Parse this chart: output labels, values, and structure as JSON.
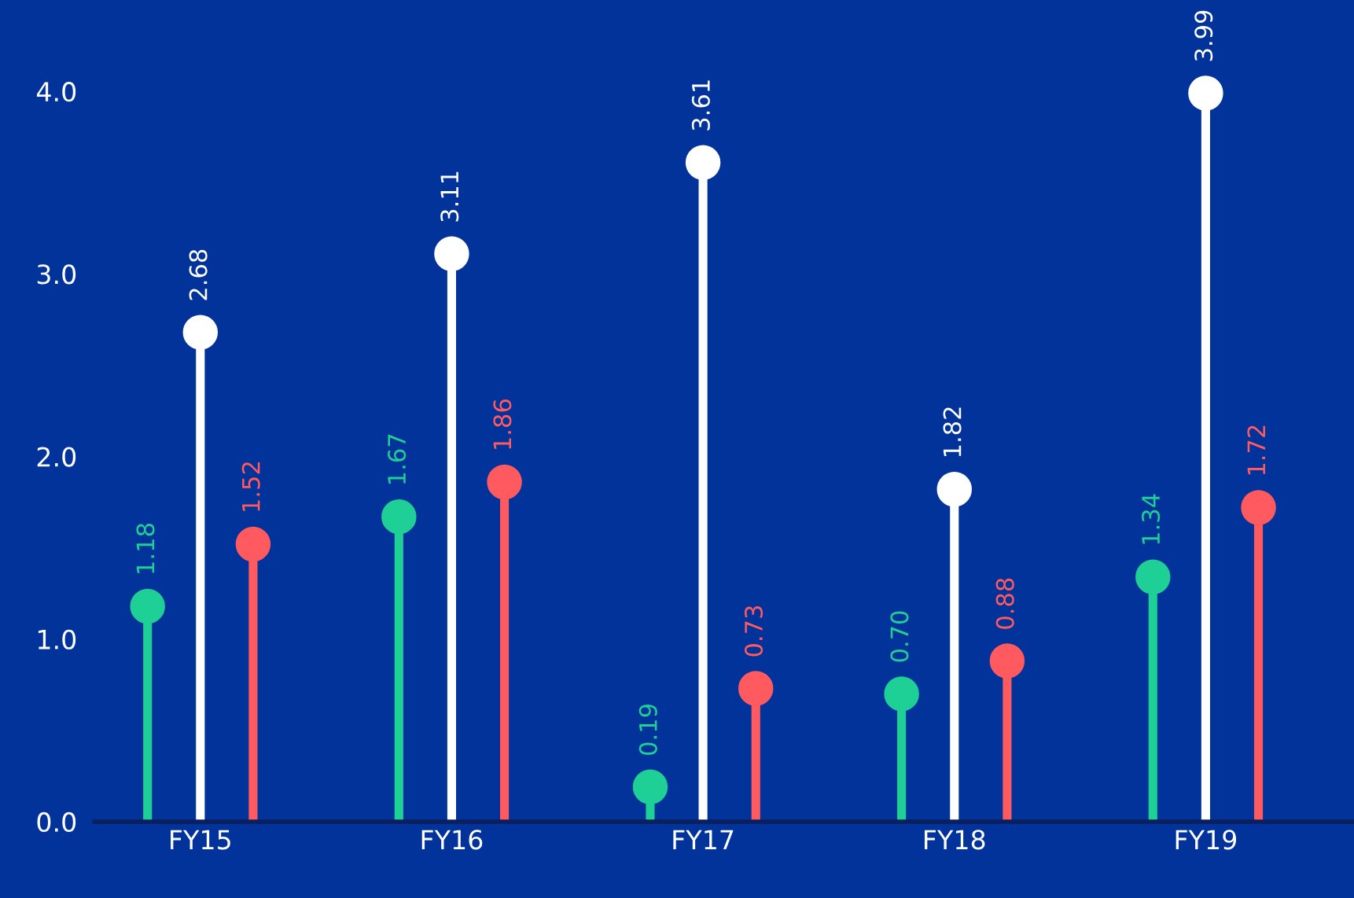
{
  "chart_data": {
    "type": "lollipop",
    "categories": [
      "FY15",
      "FY16",
      "FY17",
      "FY18",
      "FY19"
    ],
    "series": [
      {
        "color": "#1ecf96",
        "values": [
          1.18,
          1.67,
          0.19,
          0.7,
          1.34
        ],
        "value_labels": [
          "1.18",
          "1.67",
          "0.19",
          "0.70",
          "1.34"
        ]
      },
      {
        "color": "#ffffff",
        "values": [
          2.68,
          3.11,
          3.61,
          1.82,
          3.99
        ],
        "value_labels": [
          "2.68",
          "3.11",
          "3.61",
          "1.82",
          "3.99"
        ]
      },
      {
        "color": "#ff5a5f",
        "values": [
          1.52,
          1.86,
          0.73,
          0.88,
          1.72
        ],
        "value_labels": [
          "1.52",
          "1.86",
          "0.73",
          "0.88",
          "1.72"
        ]
      }
    ],
    "ylim": [
      0,
      4.5
    ],
    "yticks": [
      {
        "value": 0,
        "label": "0.0"
      },
      {
        "value": 1,
        "label": "1.0"
      },
      {
        "value": 2,
        "label": "2.0"
      },
      {
        "value": 3,
        "label": "3.0"
      },
      {
        "value": 4,
        "label": "4.0"
      }
    ],
    "legend": false,
    "marker": "circle"
  }
}
